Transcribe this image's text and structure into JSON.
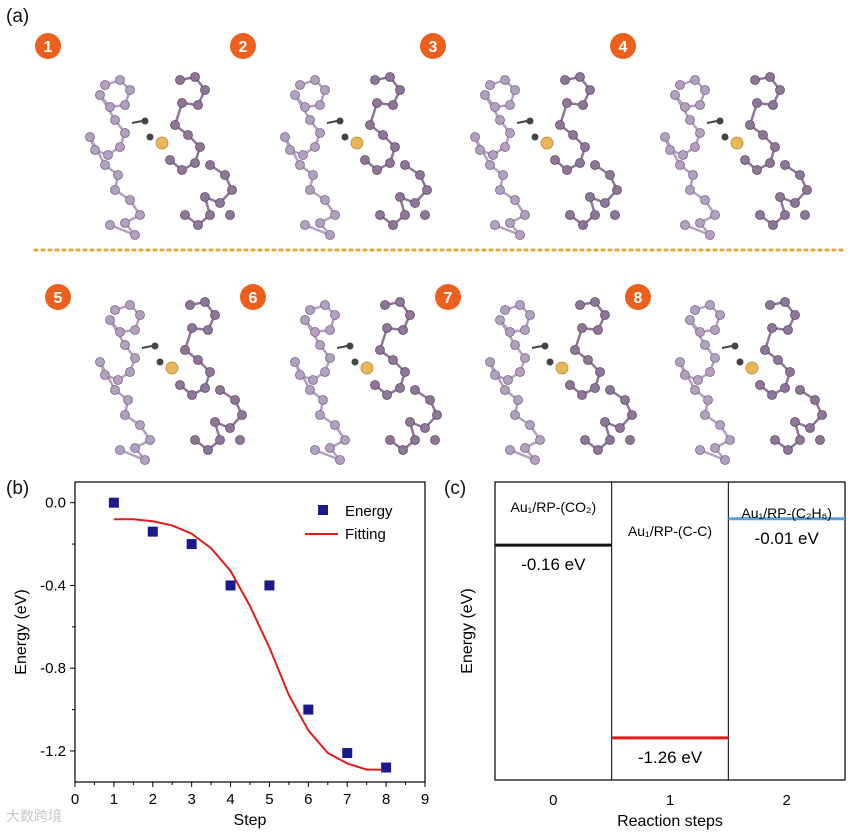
{
  "panel_a": {
    "label": "(a)",
    "steps": [
      "1",
      "2",
      "3",
      "4",
      "5",
      "6",
      "7",
      "8"
    ],
    "colors": {
      "badge": "#ec5f1c",
      "phosphorus": "#b39fbf",
      "phosphorus_dark": "#8f7698",
      "gold": "#e7b75a",
      "carbon": "#444444",
      "divider": "#e8a23a"
    }
  },
  "panel_b": {
    "label": "(b)"
  },
  "panel_c": {
    "label": "(c)"
  },
  "watermark": "大数跨境",
  "chart_data": [
    {
      "type": "scatter",
      "panel": "b",
      "xlabel": "Step",
      "ylabel": "Energy (eV)",
      "xlim": [
        0,
        9
      ],
      "ylim": [
        -1.35,
        0.1
      ],
      "x_ticks": [
        "0",
        "1",
        "2",
        "3",
        "4",
        "5",
        "6",
        "7",
        "8",
        "9"
      ],
      "y_ticks": [
        "0.0",
        "-0.4",
        "-0.8",
        "-1.2"
      ],
      "legend_position": "top-right",
      "series": [
        {
          "name": "Energy",
          "type": "scatter",
          "color": "#1a1a8c",
          "x": [
            1,
            2,
            3,
            4,
            5,
            6,
            7,
            8
          ],
          "y": [
            0.0,
            -0.14,
            -0.2,
            -0.4,
            -0.4,
            -1.0,
            -1.21,
            -1.28
          ]
        },
        {
          "name": "Fitting",
          "type": "line",
          "color": "#e01b1b",
          "x": [
            1,
            1.5,
            2,
            2.5,
            3,
            3.5,
            4,
            4.5,
            5,
            5.5,
            6,
            6.5,
            7,
            7.5,
            8
          ],
          "y": [
            -0.08,
            -0.08,
            -0.09,
            -0.11,
            -0.15,
            -0.22,
            -0.33,
            -0.5,
            -0.7,
            -0.93,
            -1.1,
            -1.21,
            -1.26,
            -1.29,
            -1.29
          ]
        }
      ]
    },
    {
      "type": "energy-levels",
      "panel": "c",
      "xlabel": "Reaction steps",
      "ylabel": "Energy (eV)",
      "x_ticks": [
        "0",
        "1",
        "2"
      ],
      "levels": [
        {
          "step": 0,
          "name": "Au₁/RP-(CO₂)",
          "value": -0.16,
          "value_label": "-0.16 eV",
          "color": "#111111"
        },
        {
          "step": 1,
          "name": "Au₁/RP-(C-C)",
          "value": -1.26,
          "value_label": "-1.26 eV",
          "color": "#e01b1b"
        },
        {
          "step": 2,
          "name": "Au₁/RP-(C₂H₆)",
          "value": -0.01,
          "value_label": "-0.01 eV",
          "color": "#5aa0dc"
        }
      ]
    }
  ]
}
